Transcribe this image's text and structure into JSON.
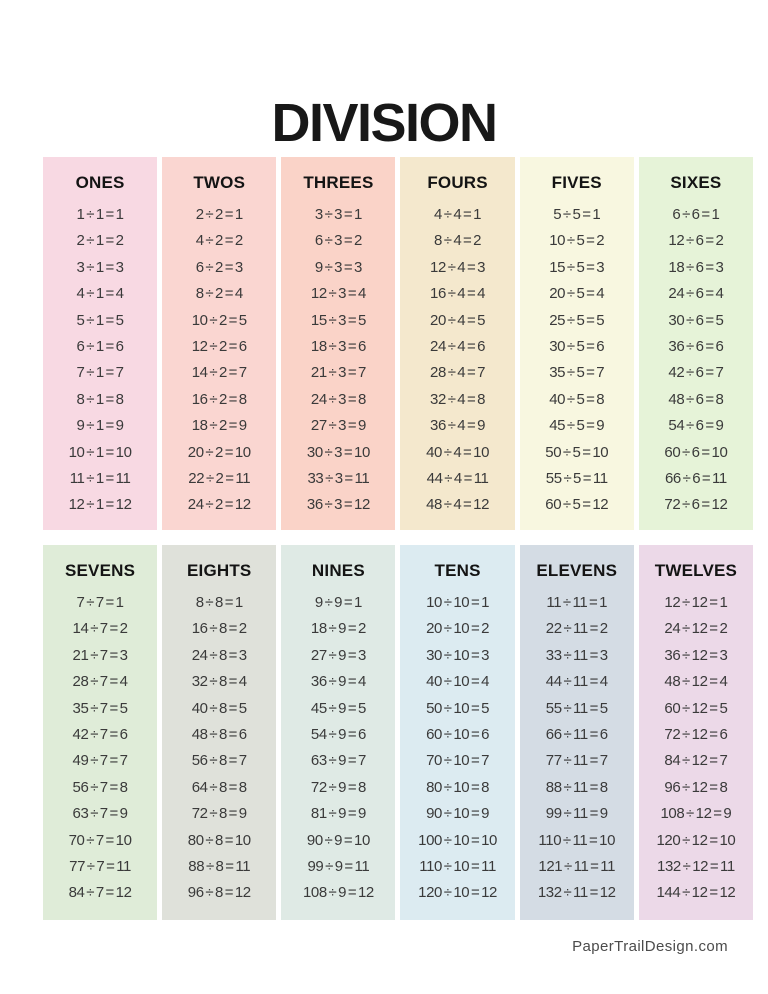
{
  "page": {
    "title": "DIVISION",
    "footer": "PaperTrailDesign.com",
    "background": "#ffffff",
    "heading_color": "#141414",
    "fact_color": "#3a3a3a",
    "footer_color": "#4b4b4b"
  },
  "tables": [
    {
      "label": "ONES",
      "bg": "#f8d9e3",
      "facts": [
        "1 ÷ 1 = 1",
        "2 ÷ 1 = 2",
        "3 ÷ 1 = 3",
        "4 ÷ 1 = 4",
        "5 ÷ 1 = 5",
        "6 ÷ 1 = 6",
        "7 ÷ 1 = 7",
        "8 ÷ 1 = 8",
        "9 ÷ 1 = 9",
        "10 ÷ 1 = 10",
        "11 ÷ 1 = 11",
        "12 ÷ 1 = 12"
      ]
    },
    {
      "label": "TWOS",
      "bg": "#fad6d1",
      "facts": [
        "2 ÷ 2 = 1",
        "4 ÷ 2 = 2",
        "6 ÷ 2 = 3",
        "8 ÷ 2 = 4",
        "10 ÷ 2 = 5",
        "12 ÷ 2 = 6",
        "14 ÷ 2 = 7",
        "16 ÷ 2 = 8",
        "18 ÷ 2 = 9",
        "20 ÷ 2 = 10",
        "22 ÷ 2 = 11",
        "24 ÷ 2 = 12"
      ]
    },
    {
      "label": "THREES",
      "bg": "#fad3c8",
      "facts": [
        "3 ÷ 3 = 1",
        "6 ÷ 3 = 2",
        "9 ÷ 3 = 3",
        "12 ÷ 3 = 4",
        "15 ÷ 3 = 5",
        "18 ÷ 3 = 6",
        "21 ÷ 3 = 7",
        "24 ÷ 3 = 8",
        "27 ÷ 3 = 9",
        "30 ÷ 3 = 10",
        "33 ÷ 3 = 11",
        "36 ÷ 3 = 12"
      ]
    },
    {
      "label": "FOURS",
      "bg": "#f4e8cd",
      "facts": [
        "4 ÷ 4 = 1",
        "8 ÷ 4 = 2",
        "12 ÷ 4 = 3",
        "16 ÷ 4 = 4",
        "20 ÷ 4 = 5",
        "24 ÷ 4 = 6",
        "28 ÷ 4 = 7",
        "32 ÷ 4 = 8",
        "36 ÷ 4 = 9",
        "40 ÷ 4 = 10",
        "44 ÷ 4 = 11",
        "48 ÷ 4 = 12"
      ]
    },
    {
      "label": "FIVES",
      "bg": "#f8f7e0",
      "facts": [
        "5 ÷ 5 = 1",
        "10 ÷ 5 = 2",
        "15 ÷ 5 = 3",
        "20 ÷ 5 = 4",
        "25 ÷ 5 = 5",
        "30 ÷ 5 = 6",
        "35 ÷ 5 = 7",
        "40 ÷ 5 = 8",
        "45 ÷ 5 = 9",
        "50 ÷ 5 = 10",
        "55 ÷ 5 = 11",
        "60 ÷ 5 = 12"
      ]
    },
    {
      "label": "SIXES",
      "bg": "#e6f3d8",
      "facts": [
        "6 ÷ 6 = 1",
        "12 ÷ 6 = 2",
        "18 ÷ 6 = 3",
        "24 ÷ 6 = 4",
        "30 ÷ 6 = 5",
        "36 ÷ 6 = 6",
        "42 ÷ 6 = 7",
        "48 ÷ 6 = 8",
        "54 ÷ 6 = 9",
        "60 ÷ 6 = 10",
        "66 ÷ 6 = 11",
        "72 ÷ 6 = 12"
      ]
    },
    {
      "label": "SEVENS",
      "bg": "#dfecd8",
      "facts": [
        "7 ÷ 7 = 1",
        "14 ÷ 7 = 2",
        "21 ÷ 7 = 3",
        "28 ÷ 7 = 4",
        "35 ÷ 7 = 5",
        "42 ÷ 7 = 6",
        "49 ÷ 7 = 7",
        "56 ÷ 7 = 8",
        "63 ÷ 7 = 9",
        "70 ÷ 7 = 10",
        "77 ÷ 7 = 11",
        "84 ÷ 7 = 12"
      ]
    },
    {
      "label": "EIGHTS",
      "bg": "#dfe1da",
      "facts": [
        "8 ÷ 8 = 1",
        "16 ÷ 8 = 2",
        "24 ÷ 8 = 3",
        "32 ÷ 8 = 4",
        "40 ÷ 8 = 5",
        "48 ÷ 8 = 6",
        "56 ÷ 8 = 7",
        "64 ÷ 8 = 8",
        "72 ÷ 8 = 9",
        "80 ÷ 8 = 10",
        "88 ÷ 8 = 11",
        "96 ÷ 8 = 12"
      ]
    },
    {
      "label": "NINES",
      "bg": "#dfeae5",
      "facts": [
        "9 ÷ 9 = 1",
        "18 ÷ 9 = 2",
        "27 ÷ 9 = 3",
        "36 ÷ 9 = 4",
        "45 ÷ 9 = 5",
        "54 ÷ 9 = 6",
        "63 ÷ 9 = 7",
        "72 ÷ 9 = 8",
        "81 ÷ 9 = 9",
        "90 ÷ 9 = 10",
        "99 ÷ 9 = 11",
        "108 ÷ 9 = 12"
      ]
    },
    {
      "label": "TENS",
      "bg": "#dcebf1",
      "facts": [
        "10 ÷ 10 = 1",
        "20 ÷ 10 = 2",
        "30 ÷ 10 = 3",
        "40 ÷ 10 = 4",
        "50 ÷ 10 = 5",
        "60 ÷ 10 = 6",
        "70 ÷ 10 = 7",
        "80 ÷ 10 = 8",
        "90 ÷ 10 = 9",
        "100 ÷ 10 = 10",
        "110 ÷ 10 = 11",
        "120 ÷ 10 = 12"
      ]
    },
    {
      "label": "ELEVENS",
      "bg": "#d4dce4",
      "facts": [
        "11 ÷ 11 = 1",
        "22 ÷ 11 = 2",
        "33 ÷ 11 = 3",
        "44 ÷ 11 = 4",
        "55 ÷ 11 = 5",
        "66 ÷ 11 = 6",
        "77 ÷ 11 = 7",
        "88 ÷ 11 = 8",
        "99 ÷ 11 = 9",
        "110 ÷ 11 = 10",
        "121 ÷ 11 = 11",
        "132 ÷ 11 = 12"
      ]
    },
    {
      "label": "TWELVES",
      "bg": "#ecd9e8",
      "facts": [
        "12 ÷ 12 = 1",
        "24 ÷ 12 = 2",
        "36 ÷ 12 = 3",
        "48 ÷ 12 = 4",
        "60 ÷ 12 = 5",
        "72 ÷ 12 = 6",
        "84 ÷ 12 = 7",
        "96 ÷ 12 = 8",
        "108 ÷ 12 = 9",
        "120 ÷ 12 = 10",
        "132 ÷ 12 = 11",
        "144 ÷ 12 = 12"
      ]
    }
  ]
}
